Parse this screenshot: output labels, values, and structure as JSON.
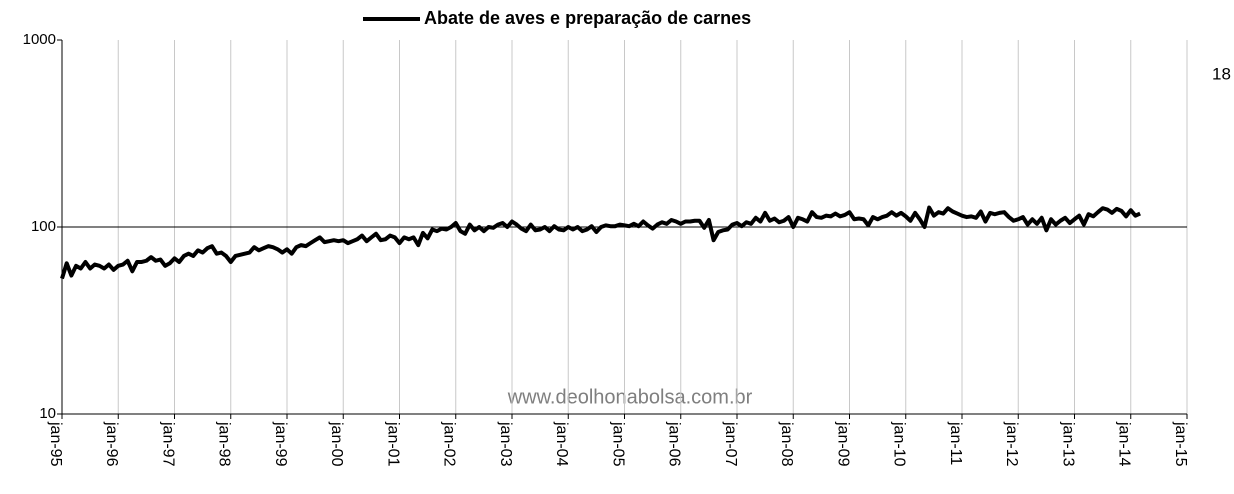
{
  "chart_data": {
    "type": "line",
    "log_scale": true,
    "legend": "top",
    "annotations": [
      "18",
      "www.deolhonabolsa.com.br"
    ],
    "ylim": [
      10,
      1000
    ],
    "yticks": [
      10,
      100,
      1000
    ],
    "categories": [
      "jan-95",
      null,
      null,
      null,
      null,
      null,
      null,
      null,
      null,
      null,
      null,
      null,
      "jan-96",
      null,
      null,
      null,
      null,
      null,
      null,
      null,
      null,
      null,
      null,
      null,
      "jan-97",
      null,
      null,
      null,
      null,
      null,
      null,
      null,
      null,
      null,
      null,
      null,
      "jan-98",
      null,
      null,
      null,
      null,
      null,
      null,
      null,
      null,
      null,
      null,
      null,
      "jan-99",
      null,
      null,
      null,
      null,
      null,
      null,
      null,
      null,
      null,
      null,
      null,
      "jan-00",
      null,
      null,
      null,
      null,
      null,
      null,
      null,
      null,
      null,
      null,
      null,
      "jan-01",
      null,
      null,
      null,
      null,
      null,
      null,
      null,
      null,
      null,
      null,
      null,
      "jan-02",
      null,
      null,
      null,
      null,
      null,
      null,
      null,
      null,
      null,
      null,
      null,
      "jan-03",
      null,
      null,
      null,
      null,
      null,
      null,
      null,
      null,
      null,
      null,
      null,
      "jan-04",
      null,
      null,
      null,
      null,
      null,
      null,
      null,
      null,
      null,
      null,
      null,
      "jan-05",
      null,
      null,
      null,
      null,
      null,
      null,
      null,
      null,
      null,
      null,
      null,
      "jan-06",
      null,
      null,
      null,
      null,
      null,
      null,
      null,
      null,
      null,
      null,
      null,
      "jan-07",
      null,
      null,
      null,
      null,
      null,
      null,
      null,
      null,
      null,
      null,
      null,
      "jan-08",
      null,
      null,
      null,
      null,
      null,
      null,
      null,
      null,
      null,
      null,
      null,
      "jan-09",
      null,
      null,
      null,
      null,
      null,
      null,
      null,
      null,
      null,
      null,
      null,
      "jan-10",
      null,
      null,
      null,
      null,
      null,
      null,
      null,
      null,
      null,
      null,
      null,
      "jan-11",
      null,
      null,
      null,
      null,
      null,
      null,
      null,
      null,
      null,
      null,
      null,
      "jan-12",
      null,
      null,
      null,
      null,
      null,
      null,
      null,
      null,
      null,
      null,
      null,
      "jan-13",
      null,
      null,
      null,
      null,
      null,
      null,
      null,
      null,
      null,
      null,
      null,
      "jan-14",
      null,
      null,
      null,
      null,
      null,
      null,
      null,
      null,
      null,
      null,
      null,
      "jan-15"
    ],
    "series": [
      {
        "name": "Abate de aves e preparação de carnes",
        "color": "#000000",
        "values": [
          53,
          64,
          55,
          62,
          60,
          65,
          60,
          63,
          62,
          60,
          63,
          59,
          62,
          63,
          66,
          58,
          65,
          65,
          66,
          69,
          66,
          67,
          62,
          64,
          68,
          65,
          70,
          72,
          70,
          75,
          73,
          77,
          79,
          72,
          73,
          70,
          65,
          70,
          71,
          72,
          73,
          78,
          75,
          77,
          79,
          78,
          76,
          73,
          76,
          72,
          78,
          80,
          79,
          82,
          85,
          88,
          83,
          84,
          85,
          84,
          85,
          82,
          84,
          86,
          90,
          84,
          88,
          92,
          85,
          86,
          90,
          88,
          82,
          88,
          86,
          88,
          80,
          93,
          87,
          97,
          95,
          98,
          97,
          100,
          105,
          95,
          92,
          103,
          96,
          100,
          95,
          100,
          99,
          103,
          105,
          100,
          107,
          103,
          98,
          95,
          103,
          96,
          97,
          100,
          95,
          101,
          97,
          96,
          100,
          97,
          100,
          95,
          97,
          101,
          94,
          100,
          102,
          101,
          101,
          103,
          102,
          101,
          104,
          101,
          107,
          102,
          98,
          103,
          106,
          104,
          109,
          107,
          104,
          107,
          107,
          108,
          108,
          99,
          109,
          85,
          94,
          96,
          97,
          103,
          105,
          101,
          106,
          104,
          112,
          107,
          119,
          108,
          111,
          106,
          108,
          113,
          100,
          112,
          110,
          107,
          120,
          113,
          112,
          115,
          114,
          118,
          114,
          116,
          120,
          110,
          111,
          110,
          102,
          113,
          110,
          113,
          115,
          120,
          115,
          119,
          114,
          108,
          119,
          110,
          100,
          127,
          115,
          120,
          118,
          126,
          121,
          118,
          115,
          113,
          114,
          112,
          121,
          107,
          119,
          117,
          119,
          120,
          113,
          108,
          110,
          113,
          103,
          110,
          104,
          112,
          96,
          110,
          103,
          108,
          112,
          105,
          110,
          115,
          103,
          117,
          114,
          120,
          126,
          124,
          119,
          125,
          122,
          114,
          123,
          115,
          118,
          null,
          null,
          null,
          null,
          null,
          null,
          null,
          null,
          null,
          null
        ]
      }
    ]
  }
}
